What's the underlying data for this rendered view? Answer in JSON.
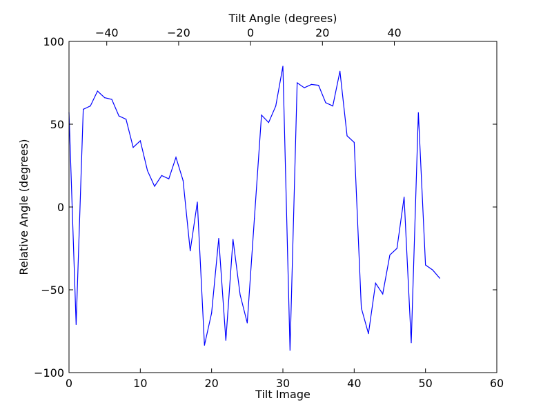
{
  "chart_data": {
    "type": "line",
    "title": "",
    "xlabel": "Tilt Image",
    "ylabel": "Relative Angle (degrees)",
    "x2label": "Tilt Angle (degrees)",
    "xlim": [
      0,
      60
    ],
    "ylim": [
      -100,
      100
    ],
    "x2lim": [
      -50.5,
      68.5
    ],
    "xticks": [
      0,
      10,
      20,
      30,
      40,
      50,
      60
    ],
    "yticks": [
      -100,
      -50,
      0,
      50,
      100
    ],
    "x2ticks": [
      -40,
      -20,
      0,
      20,
      40
    ],
    "xtick_labels": [
      "0",
      "10",
      "20",
      "30",
      "40",
      "50",
      "60"
    ],
    "ytick_labels": [
      "−100",
      "−50",
      "0",
      "50",
      "100"
    ],
    "x2tick_labels": [
      "−40",
      "−20",
      "0",
      "20",
      "40"
    ],
    "grid": false,
    "line_color": "#0000ff",
    "series": [
      {
        "x": [
          0,
          1,
          2,
          3,
          4,
          5,
          6,
          7,
          8,
          9,
          10,
          11,
          12,
          13,
          14,
          15,
          16,
          17,
          18,
          19,
          20,
          21,
          22,
          23,
          24,
          25,
          26,
          27,
          28,
          29,
          30,
          31,
          32,
          33,
          34,
          35,
          36,
          37,
          38,
          39,
          40,
          41,
          42,
          43,
          44,
          45,
          46,
          47,
          48,
          49,
          50,
          51,
          52
        ],
        "values": [
          57,
          -71,
          59,
          61,
          70,
          66,
          65,
          55,
          53,
          36,
          40,
          22,
          12.5,
          19,
          17,
          30,
          16,
          -26.5,
          3,
          -83.5,
          -64,
          -19,
          -80.5,
          -19.5,
          -53,
          -70,
          -7,
          55.5,
          51,
          61,
          85,
          -86.5,
          75,
          72,
          74,
          73.5,
          63,
          61,
          82,
          43,
          39,
          -61,
          -76.5,
          -46,
          -52.5,
          -29,
          -25,
          6,
          -82,
          57,
          -35,
          -38,
          -43
        ]
      }
    ]
  }
}
